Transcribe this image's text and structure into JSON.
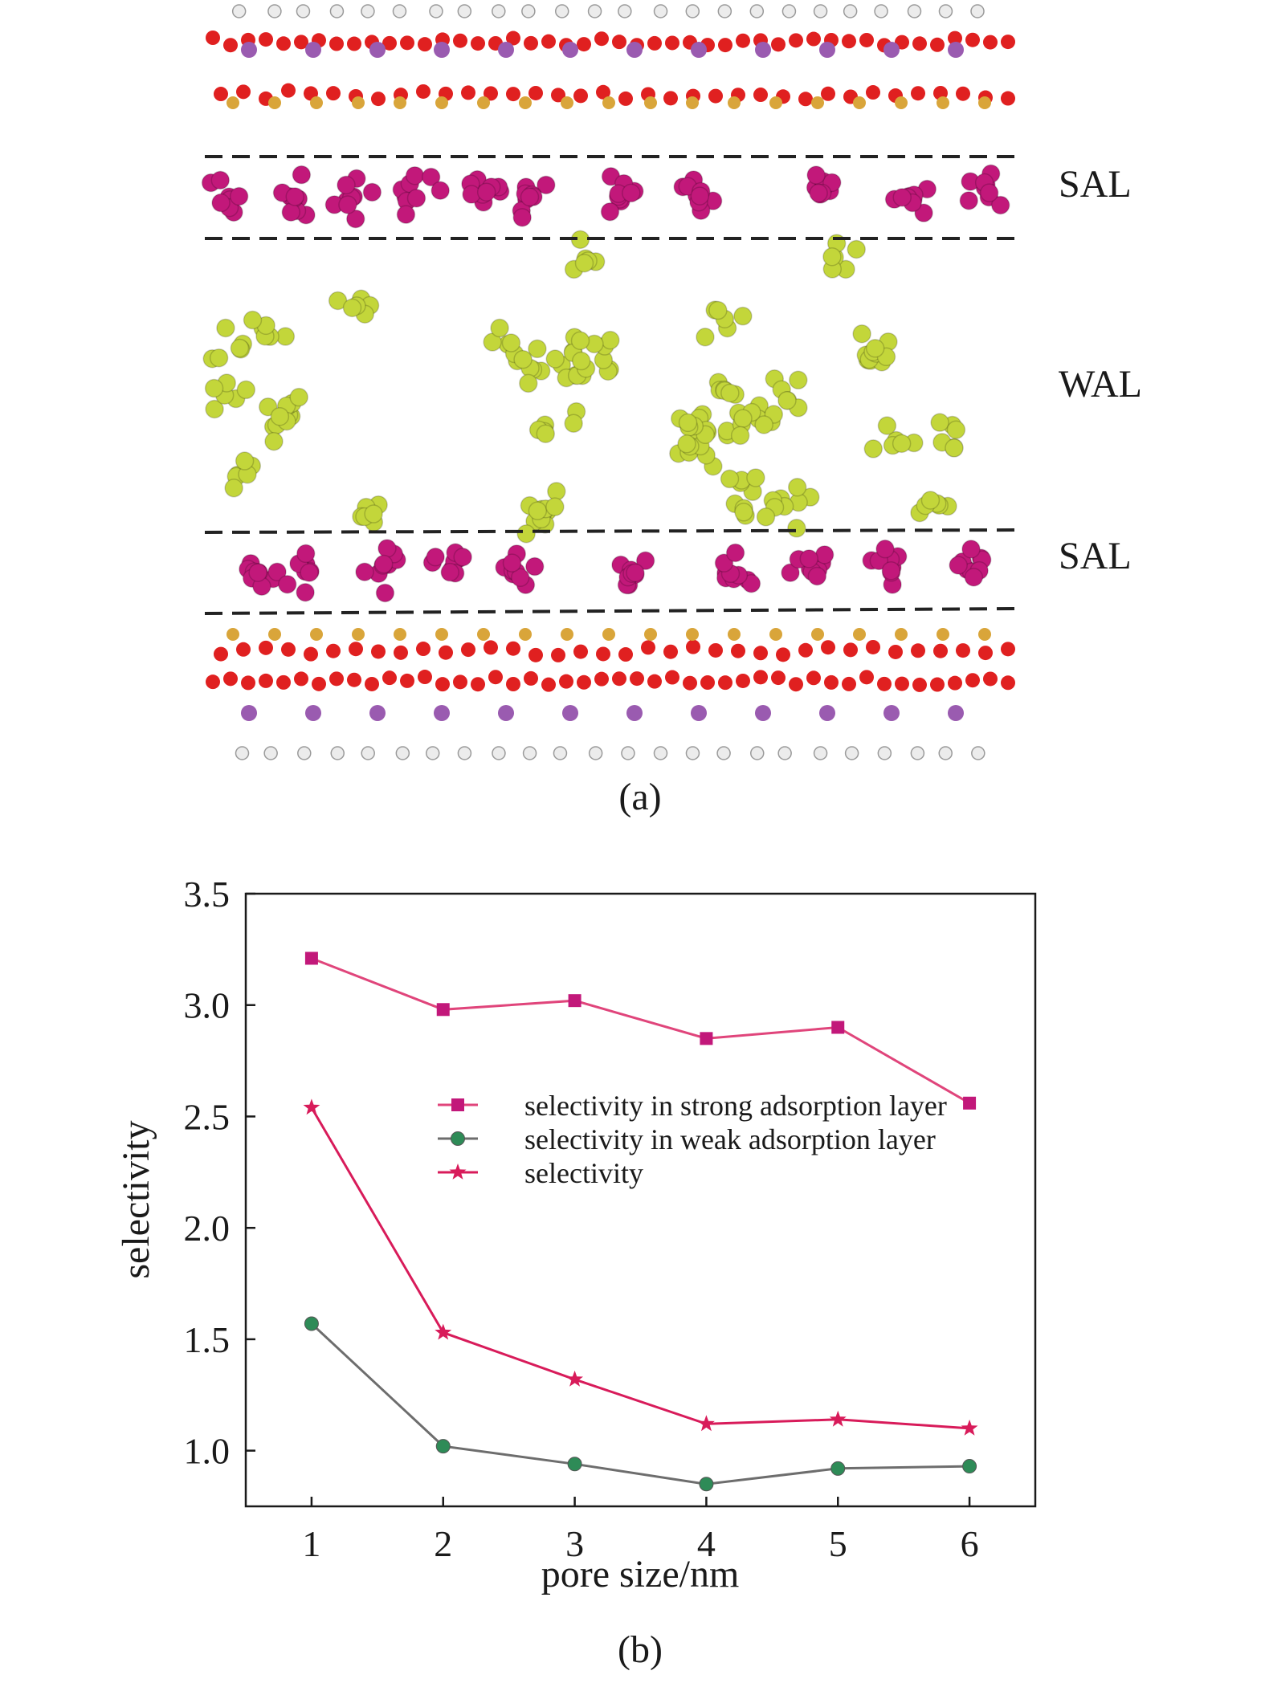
{
  "panel_a": {
    "caption": "(a)",
    "layer_labels": {
      "upper_sal": "SAL",
      "wal": "WAL",
      "lower_sal": "SAL"
    },
    "colors": {
      "strong_layer_molecules": "#c2187a",
      "weak_layer_molecules": "#c3d63a",
      "wall_oxygen": "#e02020",
      "wall_silicon": "#d9a53a",
      "wall_metal": "#9a5bb0",
      "wall_hydrogen": "#ececec"
    }
  },
  "panel_b": {
    "caption": "(b)"
  },
  "chart_data": {
    "type": "line",
    "title": "",
    "xlabel": "pore size/nm",
    "ylabel": "selectivity",
    "x": [
      1,
      2,
      3,
      4,
      5,
      6
    ],
    "xlim": [
      0.5,
      6.5
    ],
    "ylim": [
      0.75,
      3.5
    ],
    "xticks": [
      1,
      2,
      3,
      4,
      5,
      6
    ],
    "yticks": [
      1.0,
      1.5,
      2.0,
      2.5,
      3.0,
      3.5
    ],
    "ytick_labels": [
      "1.0",
      "1.5",
      "2.0",
      "2.5",
      "3.0",
      "3.5"
    ],
    "grid": false,
    "legend_position": "center-right",
    "series": [
      {
        "name": "selectivity in strong adsorption layer",
        "marker": "square",
        "line_color": "#e0457b",
        "marker_color": "#c2187a",
        "values": [
          3.21,
          2.98,
          3.02,
          2.85,
          2.9,
          2.56
        ]
      },
      {
        "name": "selectivity in weak adsorption layer",
        "marker": "circle",
        "line_color": "#6d6d6d",
        "marker_color": "#2e8b57",
        "values": [
          1.57,
          1.02,
          0.94,
          0.85,
          0.92,
          0.93
        ]
      },
      {
        "name": "selectivity",
        "marker": "star",
        "line_color": "#d81b5a",
        "marker_color": "#d81b5a",
        "values": [
          2.54,
          1.53,
          1.32,
          1.12,
          1.14,
          1.1
        ]
      }
    ]
  }
}
